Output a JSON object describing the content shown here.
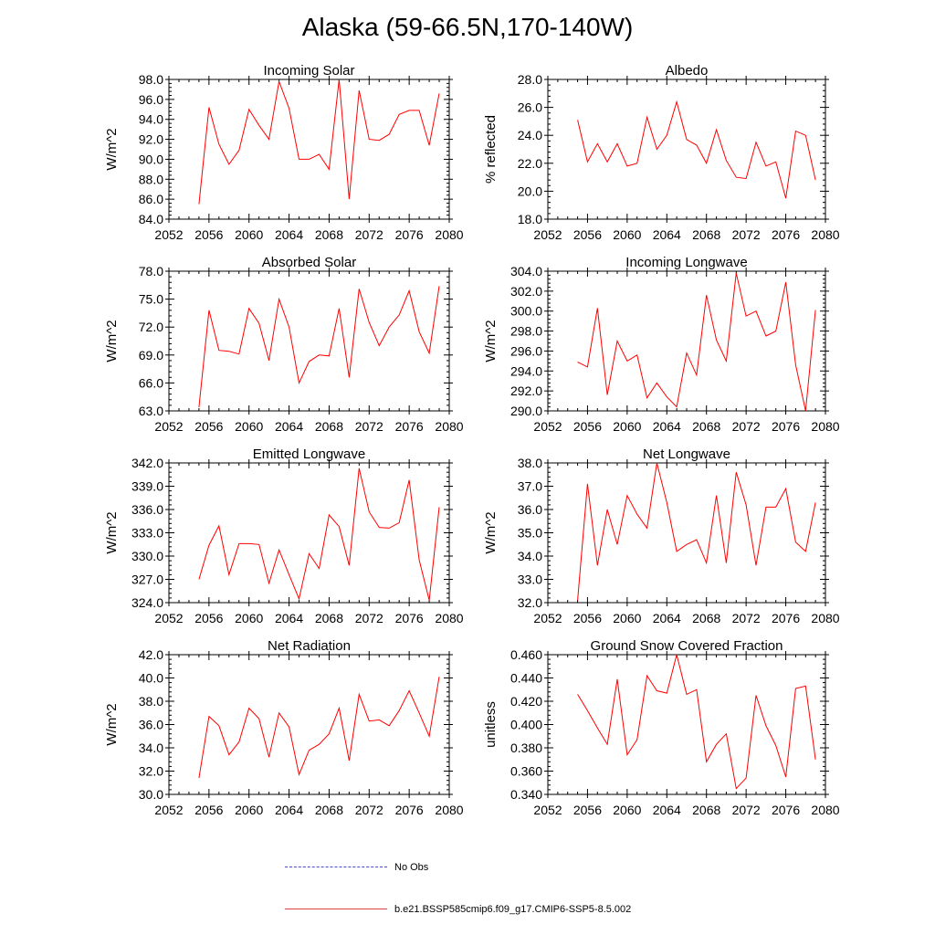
{
  "title": "Alaska (59-66.5N,170-140W)",
  "colors": {
    "series": "#ff0000",
    "obs": "#4a4ad0",
    "axis": "#000000"
  },
  "legend": {
    "obs_label": "No Obs",
    "model_label": "b.e21.BSSP585cmip6.f09_g17.CMIP6-SSP5-8.5.002"
  },
  "chart_data": [
    {
      "type": "line",
      "title": "Incoming Solar",
      "ylabel": "W/m^2",
      "xlim": [
        2052,
        2080
      ],
      "xticks": [
        "2052",
        "2056",
        "2060",
        "2064",
        "2068",
        "2072",
        "2076",
        "2080"
      ],
      "ylim": [
        84,
        98
      ],
      "yticks": [
        "84.0",
        "86.0",
        "88.0",
        "90.0",
        "92.0",
        "94.0",
        "96.0",
        "98.0"
      ],
      "x": [
        2055,
        2056,
        2057,
        2058,
        2059,
        2060,
        2061,
        2062,
        2063,
        2064,
        2065,
        2066,
        2067,
        2068,
        2069,
        2070,
        2071,
        2072,
        2073,
        2074,
        2075,
        2076,
        2077,
        2078,
        2079
      ],
      "values": [
        85.5,
        95.2,
        91.5,
        89.5,
        90.9,
        95.0,
        93.4,
        92.0,
        97.8,
        95.1,
        90.0,
        90.0,
        90.5,
        89.0,
        98.0,
        86.0,
        96.9,
        92.0,
        91.9,
        92.5,
        94.5,
        94.9,
        94.9,
        91.4,
        96.6
      ]
    },
    {
      "type": "line",
      "title": "Albedo",
      "ylabel": "% reflected",
      "xlim": [
        2052,
        2080
      ],
      "xticks": [
        "2052",
        "2056",
        "2060",
        "2064",
        "2068",
        "2072",
        "2076",
        "2080"
      ],
      "ylim": [
        18,
        28
      ],
      "yticks": [
        "18.0",
        "20.0",
        "22.0",
        "24.0",
        "26.0",
        "28.0"
      ],
      "x": [
        2055,
        2056,
        2057,
        2058,
        2059,
        2060,
        2061,
        2062,
        2063,
        2064,
        2065,
        2066,
        2067,
        2068,
        2069,
        2070,
        2071,
        2072,
        2073,
        2074,
        2075,
        2076,
        2077,
        2078,
        2079
      ],
      "values": [
        25.1,
        22.1,
        23.4,
        22.1,
        23.4,
        21.8,
        22.0,
        25.3,
        23.0,
        24.0,
        26.4,
        23.7,
        23.3,
        22.0,
        24.4,
        22.2,
        21.0,
        20.9,
        23.5,
        21.8,
        22.1,
        19.5,
        24.3,
        24.0,
        20.8
      ]
    },
    {
      "type": "line",
      "title": "Absorbed Solar",
      "ylabel": "W/m^2",
      "xlim": [
        2052,
        2080
      ],
      "xticks": [
        "2052",
        "2056",
        "2060",
        "2064",
        "2068",
        "2072",
        "2076",
        "2080"
      ],
      "ylim": [
        63,
        78
      ],
      "yticks": [
        "63.0",
        "66.0",
        "69.0",
        "72.0",
        "75.0",
        "78.0"
      ],
      "x": [
        2055,
        2056,
        2057,
        2058,
        2059,
        2060,
        2061,
        2062,
        2063,
        2064,
        2065,
        2066,
        2067,
        2068,
        2069,
        2070,
        2071,
        2072,
        2073,
        2074,
        2075,
        2076,
        2077,
        2078,
        2079
      ],
      "values": [
        63.4,
        73.8,
        69.5,
        69.4,
        69.1,
        74.0,
        72.4,
        68.4,
        75.0,
        72.0,
        66.0,
        68.3,
        69.0,
        68.9,
        74.0,
        66.6,
        76.1,
        72.5,
        70.0,
        72.0,
        73.3,
        75.9,
        71.5,
        69.2,
        76.4
      ]
    },
    {
      "type": "line",
      "title": "Incoming Longwave",
      "ylabel": "W/m^2",
      "xlim": [
        2052,
        2080
      ],
      "xticks": [
        "2052",
        "2056",
        "2060",
        "2064",
        "2068",
        "2072",
        "2076",
        "2080"
      ],
      "ylim": [
        290,
        304
      ],
      "yticks": [
        "290.0",
        "292.0",
        "294.0",
        "296.0",
        "298.0",
        "300.0",
        "302.0",
        "304.0"
      ],
      "x": [
        2055,
        2056,
        2057,
        2058,
        2059,
        2060,
        2061,
        2062,
        2063,
        2064,
        2065,
        2066,
        2067,
        2068,
        2069,
        2070,
        2071,
        2072,
        2073,
        2074,
        2075,
        2076,
        2077,
        2078,
        2079
      ],
      "values": [
        294.9,
        294.4,
        300.3,
        291.6,
        297.0,
        295.0,
        295.6,
        291.3,
        292.8,
        291.4,
        290.4,
        295.8,
        293.6,
        301.6,
        297.1,
        295.0,
        303.8,
        299.5,
        300.0,
        297.5,
        298.0,
        302.9,
        294.6,
        290.0,
        300.1
      ]
    },
    {
      "type": "line",
      "title": "Emitted Longwave",
      "ylabel": "W/m^2",
      "xlim": [
        2052,
        2080
      ],
      "xticks": [
        "2052",
        "2056",
        "2060",
        "2064",
        "2068",
        "2072",
        "2076",
        "2080"
      ],
      "ylim": [
        324,
        342
      ],
      "yticks": [
        "324.0",
        "327.0",
        "330.0",
        "333.0",
        "336.0",
        "339.0",
        "342.0"
      ],
      "x": [
        2055,
        2056,
        2057,
        2058,
        2059,
        2060,
        2061,
        2062,
        2063,
        2064,
        2065,
        2066,
        2067,
        2068,
        2069,
        2070,
        2071,
        2072,
        2073,
        2074,
        2075,
        2076,
        2077,
        2078,
        2079
      ],
      "values": [
        327.0,
        331.4,
        333.9,
        327.6,
        331.6,
        331.6,
        331.5,
        326.5,
        330.8,
        327.6,
        324.5,
        330.3,
        328.4,
        335.3,
        333.8,
        328.8,
        341.3,
        335.7,
        333.7,
        333.6,
        334.3,
        339.8,
        329.5,
        324.3,
        336.3
      ]
    },
    {
      "type": "line",
      "title": "Net Longwave",
      "ylabel": "W/m^2",
      "xlim": [
        2052,
        2080
      ],
      "xticks": [
        "2052",
        "2056",
        "2060",
        "2064",
        "2068",
        "2072",
        "2076",
        "2080"
      ],
      "ylim": [
        32,
        38
      ],
      "yticks": [
        "32.0",
        "33.0",
        "34.0",
        "35.0",
        "36.0",
        "37.0",
        "38.0"
      ],
      "x": [
        2055,
        2056,
        2057,
        2058,
        2059,
        2060,
        2061,
        2062,
        2063,
        2064,
        2065,
        2066,
        2067,
        2068,
        2069,
        2070,
        2071,
        2072,
        2073,
        2074,
        2075,
        2076,
        2077,
        2078,
        2079
      ],
      "values": [
        32.1,
        37.1,
        33.6,
        36.0,
        34.5,
        36.6,
        35.8,
        35.2,
        38.0,
        36.3,
        34.2,
        34.5,
        34.7,
        33.7,
        36.6,
        33.7,
        37.6,
        36.2,
        33.6,
        36.1,
        36.1,
        36.9,
        34.6,
        34.2,
        36.3
      ]
    },
    {
      "type": "line",
      "title": "Net Radiation",
      "ylabel": "W/m^2",
      "xlim": [
        2052,
        2080
      ],
      "xticks": [
        "2052",
        "2056",
        "2060",
        "2064",
        "2068",
        "2072",
        "2076",
        "2080"
      ],
      "ylim": [
        30,
        42
      ],
      "yticks": [
        "30.0",
        "32.0",
        "34.0",
        "36.0",
        "38.0",
        "40.0",
        "42.0"
      ],
      "x": [
        2055,
        2056,
        2057,
        2058,
        2059,
        2060,
        2061,
        2062,
        2063,
        2064,
        2065,
        2066,
        2067,
        2068,
        2069,
        2070,
        2071,
        2072,
        2073,
        2074,
        2075,
        2076,
        2077,
        2078,
        2079
      ],
      "values": [
        31.4,
        36.7,
        35.9,
        33.4,
        34.5,
        37.4,
        36.5,
        33.2,
        37.0,
        35.8,
        31.7,
        33.8,
        34.3,
        35.2,
        37.4,
        32.9,
        38.6,
        36.3,
        36.4,
        35.9,
        37.2,
        38.9,
        37.0,
        35.0,
        40.1
      ]
    },
    {
      "type": "line",
      "title": "Ground Snow Covered Fraction",
      "ylabel": "unitless",
      "xlim": [
        2052,
        2080
      ],
      "xticks": [
        "2052",
        "2056",
        "2060",
        "2064",
        "2068",
        "2072",
        "2076",
        "2080"
      ],
      "ylim": [
        0.34,
        0.46
      ],
      "yticks": [
        "0.340",
        "0.360",
        "0.380",
        "0.400",
        "0.420",
        "0.440",
        "0.460"
      ],
      "x": [
        2055,
        2056,
        2057,
        2058,
        2059,
        2060,
        2061,
        2062,
        2063,
        2064,
        2065,
        2066,
        2067,
        2068,
        2069,
        2070,
        2071,
        2072,
        2073,
        2074,
        2075,
        2076,
        2077,
        2078,
        2079
      ],
      "values": [
        0.426,
        0.412,
        0.397,
        0.383,
        0.439,
        0.374,
        0.387,
        0.442,
        0.429,
        0.427,
        0.46,
        0.426,
        0.43,
        0.368,
        0.383,
        0.392,
        0.345,
        0.354,
        0.425,
        0.399,
        0.382,
        0.355,
        0.431,
        0.433,
        0.37
      ]
    }
  ]
}
